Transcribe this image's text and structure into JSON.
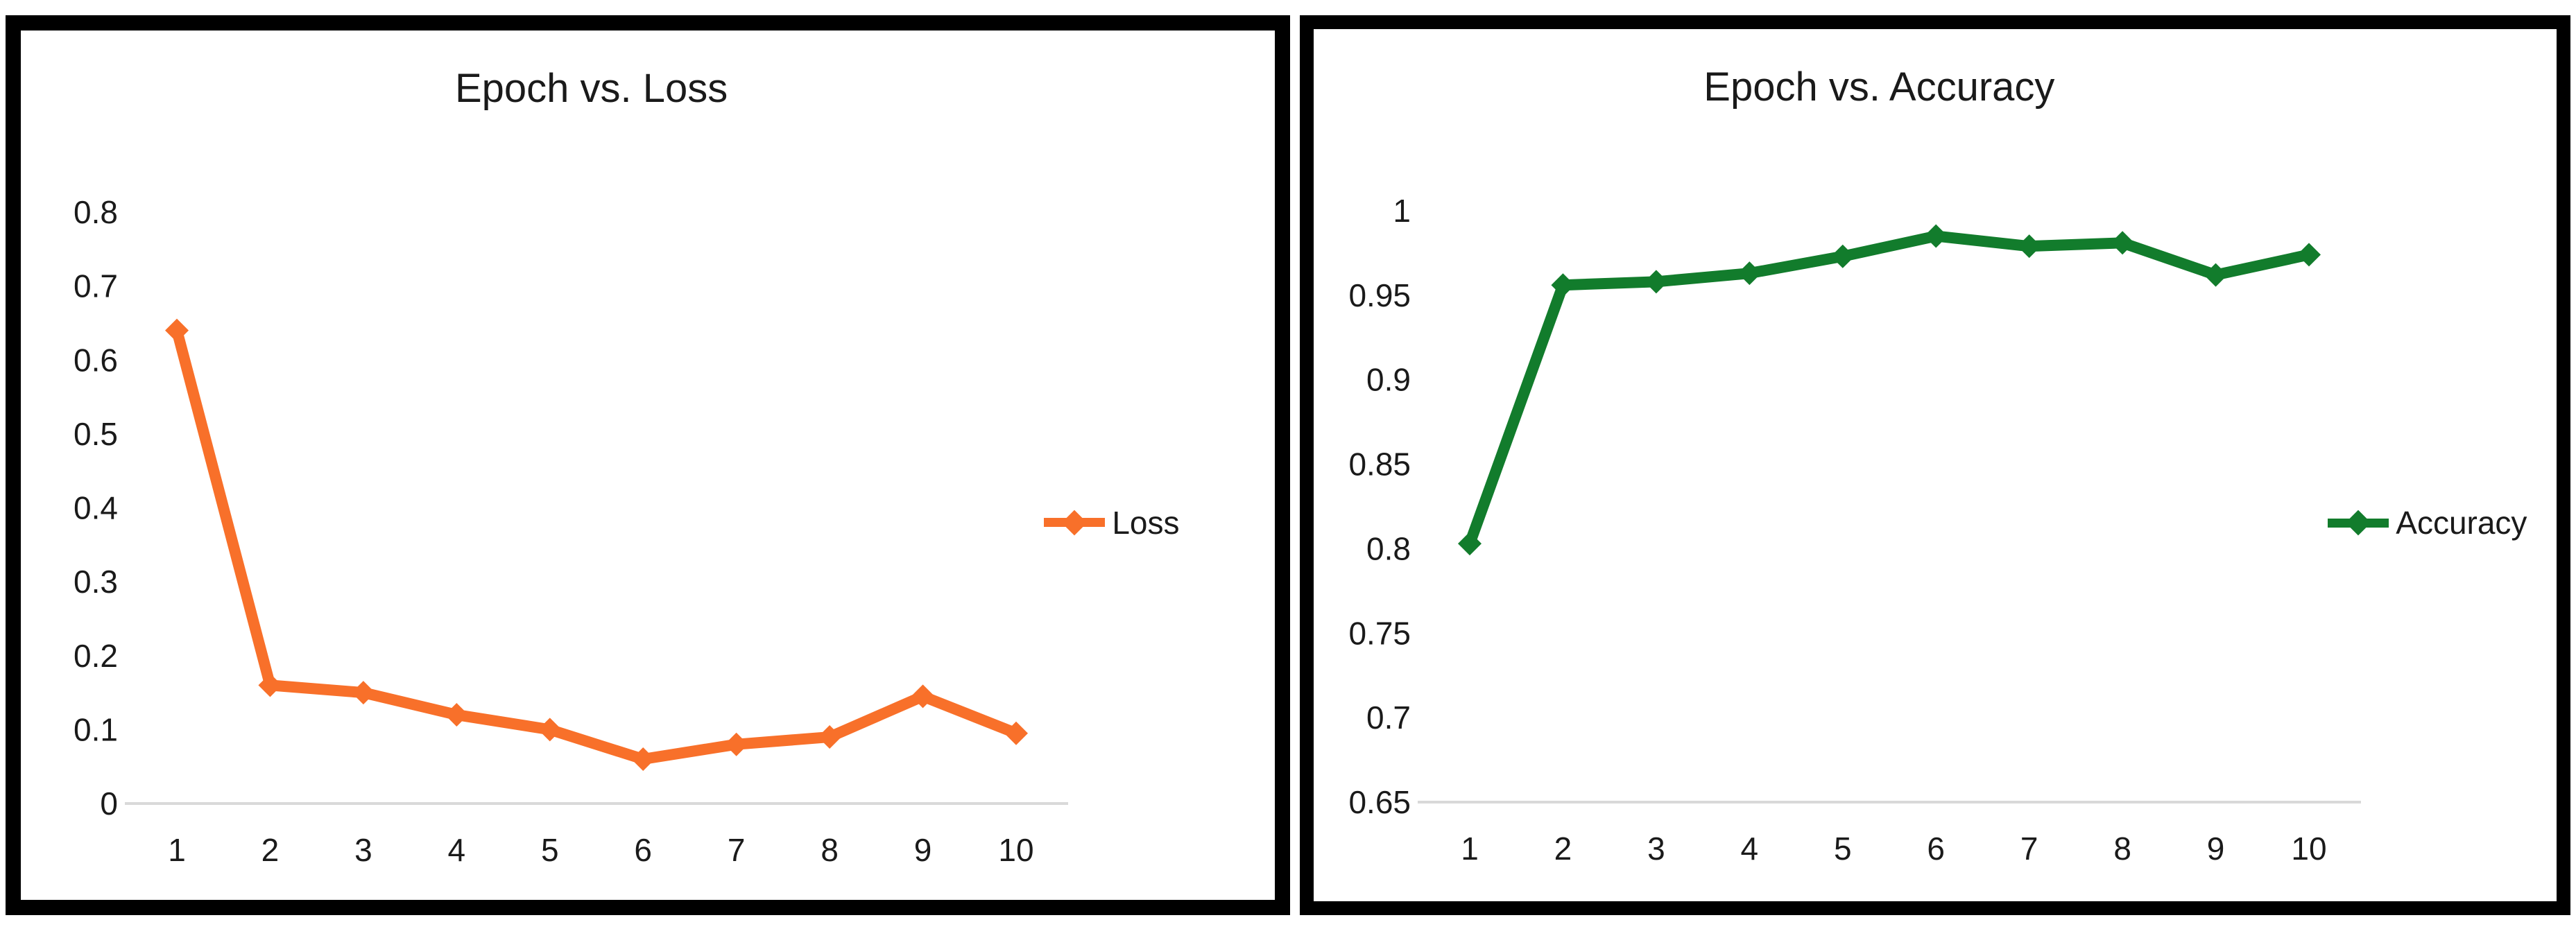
{
  "colors": {
    "background": "#FFFFFF",
    "panel_border": "#000000",
    "axis_line": "#D9D9D9",
    "text": "#1A1A1A",
    "loss_accent": "#F8702A",
    "accuracy_accent": "#127C2C"
  },
  "chart_data": [
    {
      "type": "line",
      "title": "Epoch vs. Loss",
      "categories": [
        1,
        2,
        3,
        4,
        5,
        6,
        7,
        8,
        9,
        10
      ],
      "series": [
        {
          "name": "Loss",
          "color": "#F8702A",
          "values": [
            0.64,
            0.16,
            0.15,
            0.12,
            0.1,
            0.06,
            0.08,
            0.09,
            0.145,
            0.095
          ]
        }
      ],
      "xlabel": "",
      "ylabel": "",
      "ylim": [
        0,
        0.8
      ],
      "yticks": [
        0,
        0.1,
        0.2,
        0.3,
        0.4,
        0.5,
        0.6,
        0.7,
        0.8
      ],
      "grid": false,
      "legend_position": "right",
      "marker": "diamond"
    },
    {
      "type": "line",
      "title": "Epoch vs. Accuracy",
      "categories": [
        1,
        2,
        3,
        4,
        5,
        6,
        7,
        8,
        9,
        10
      ],
      "series": [
        {
          "name": "Accuracy",
          "color": "#127C2C",
          "values": [
            0.803,
            0.956,
            0.958,
            0.963,
            0.973,
            0.985,
            0.979,
            0.981,
            0.962,
            0.974
          ]
        }
      ],
      "xlabel": "",
      "ylabel": "",
      "ylim": [
        0.65,
        1.0
      ],
      "yticks": [
        0.65,
        0.7,
        0.75,
        0.8,
        0.85,
        0.9,
        0.95,
        1
      ],
      "grid": false,
      "legend_position": "right",
      "marker": "diamond"
    }
  ]
}
